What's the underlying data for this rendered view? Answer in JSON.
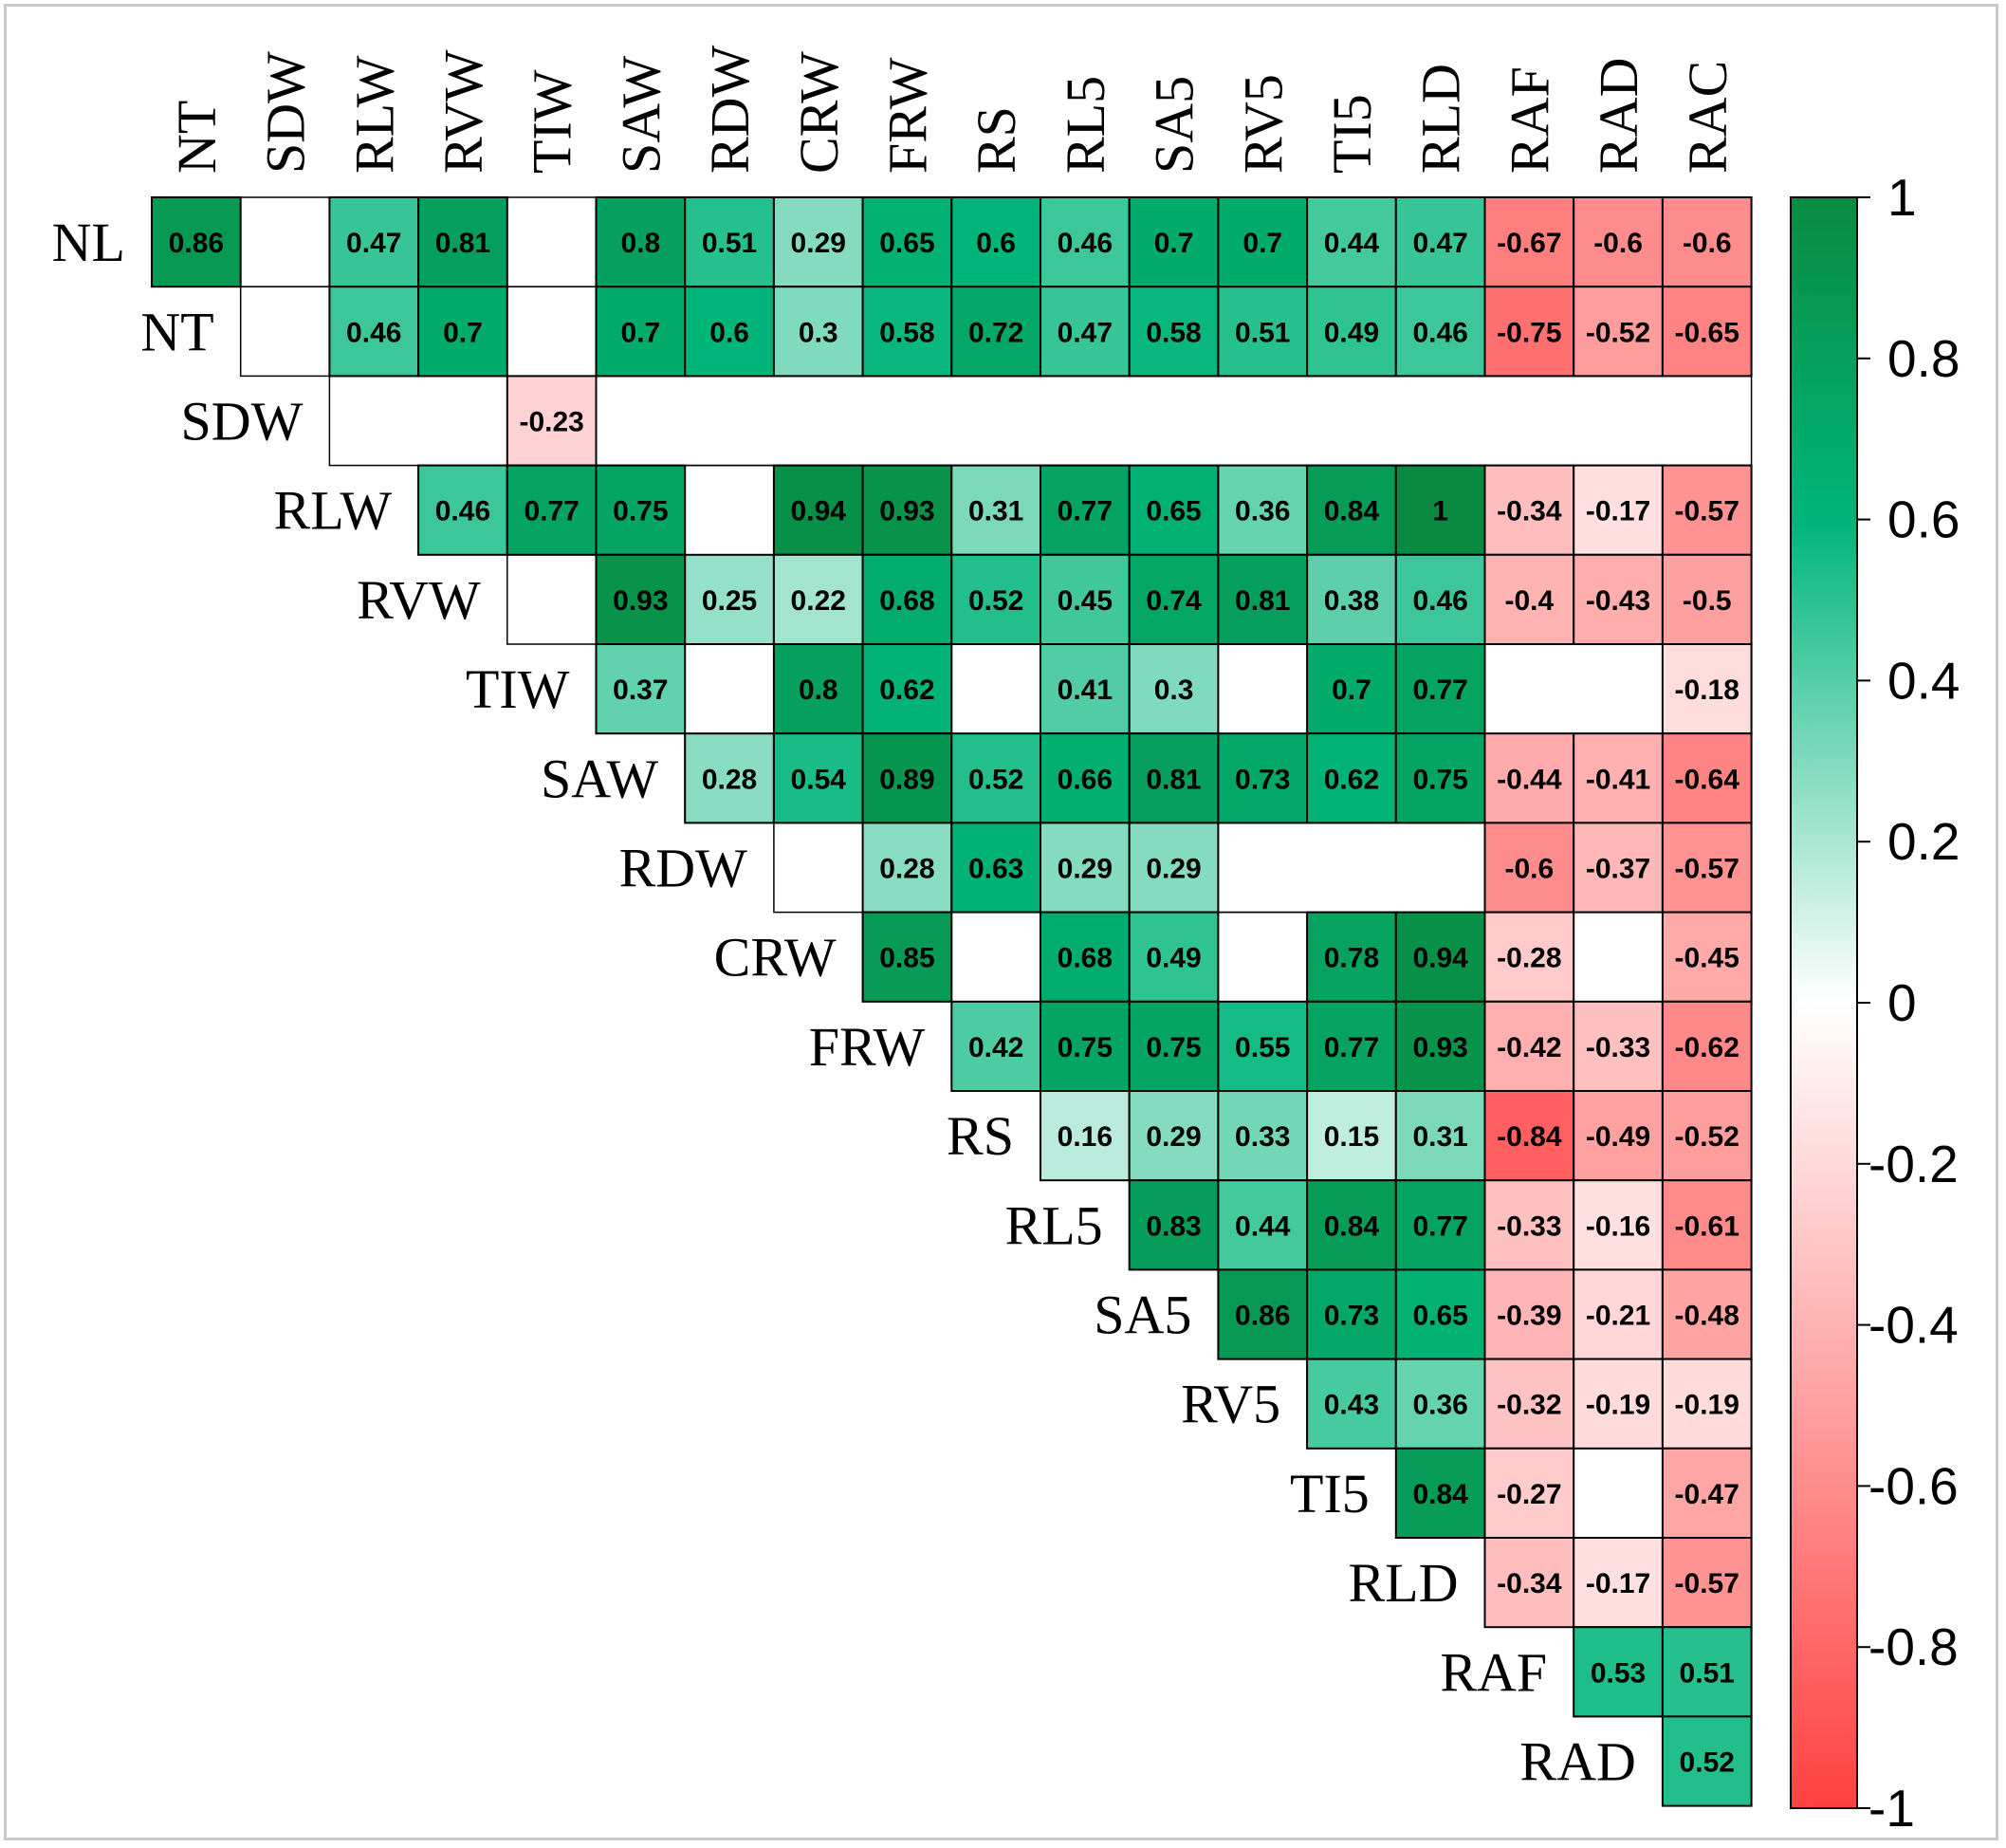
{
  "chart_data": {
    "type": "heatmap",
    "title": "",
    "rows": [
      "NL",
      "NT",
      "SDW",
      "RLW",
      "RVW",
      "TIW",
      "SAW",
      "RDW",
      "CRW",
      "FRW",
      "RS",
      "RL5",
      "SA5",
      "RV5",
      "TI5",
      "RLD",
      "RAF",
      "RAD"
    ],
    "columns": [
      "NT",
      "SDW",
      "RLW",
      "RVW",
      "TIW",
      "SAW",
      "RDW",
      "CRW",
      "FRW",
      "RS",
      "RL5",
      "SA5",
      "RV5",
      "TI5",
      "RLD",
      "RAF",
      "RAD",
      "RAC"
    ],
    "layout": "upper-triangle",
    "values": [
      [
        0.86,
        null,
        0.47,
        0.81,
        null,
        0.8,
        0.51,
        0.29,
        0.65,
        0.6,
        0.46,
        0.7,
        0.7,
        0.44,
        0.47,
        -0.67,
        -0.6,
        -0.6
      ],
      [
        null,
        0.46,
        0.7,
        null,
        0.7,
        0.6,
        0.3,
        0.58,
        0.72,
        0.47,
        0.58,
        0.51,
        0.49,
        0.46,
        -0.75,
        -0.52,
        -0.65
      ],
      [
        null,
        null,
        -0.23,
        null,
        null,
        null,
        null,
        null,
        null,
        null,
        null,
        null,
        null,
        null,
        null,
        null
      ],
      [
        0.46,
        0.77,
        0.75,
        null,
        0.94,
        0.93,
        0.31,
        0.77,
        0.65,
        0.36,
        0.84,
        1,
        -0.34,
        -0.17,
        -0.57
      ],
      [
        null,
        0.93,
        0.25,
        0.22,
        0.68,
        0.52,
        0.45,
        0.74,
        0.81,
        0.38,
        0.46,
        -0.4,
        -0.43,
        -0.5
      ],
      [
        0.37,
        null,
        0.8,
        0.62,
        null,
        0.41,
        0.3,
        null,
        0.7,
        0.77,
        null,
        null,
        -0.18
      ],
      [
        0.28,
        0.54,
        0.89,
        0.52,
        0.66,
        0.81,
        0.73,
        0.62,
        0.75,
        -0.44,
        -0.41,
        -0.64
      ],
      [
        null,
        0.28,
        0.63,
        0.29,
        0.29,
        null,
        null,
        null,
        -0.6,
        -0.37,
        -0.57
      ],
      [
        0.85,
        null,
        0.68,
        0.49,
        null,
        0.78,
        0.94,
        -0.28,
        null,
        -0.45
      ],
      [
        0.42,
        0.75,
        0.75,
        0.55,
        0.77,
        0.93,
        -0.42,
        -0.33,
        -0.62
      ],
      [
        0.16,
        0.29,
        0.33,
        0.15,
        0.31,
        -0.84,
        -0.49,
        -0.52
      ],
      [
        0.83,
        0.44,
        0.84,
        0.77,
        -0.33,
        -0.16,
        -0.61
      ],
      [
        0.86,
        0.73,
        0.65,
        -0.39,
        -0.21,
        -0.48
      ],
      [
        0.43,
        0.36,
        -0.32,
        -0.19,
        -0.19
      ],
      [
        0.84,
        -0.27,
        null,
        -0.47
      ],
      [
        -0.34,
        -0.17,
        -0.57
      ],
      [
        0.53,
        0.51
      ],
      [
        0.52
      ]
    ],
    "colorbar": {
      "range": [
        -1,
        1
      ],
      "ticks": [
        1,
        0.8,
        0.6,
        0.4,
        0.2,
        0,
        -0.2,
        -0.4,
        -0.6,
        -0.8,
        -1
      ],
      "tick_labels": [
        "1",
        "0.8",
        "0.6",
        "0.4",
        "0.2",
        "0",
        "-0.2",
        "-0.4",
        "-0.6",
        "-0.8",
        "-1"
      ],
      "colors": {
        "negative": "#ff4040",
        "zero": "#ffffff",
        "positive_mid": "#00b57a",
        "positive_max": "#0a8a40"
      }
    }
  }
}
